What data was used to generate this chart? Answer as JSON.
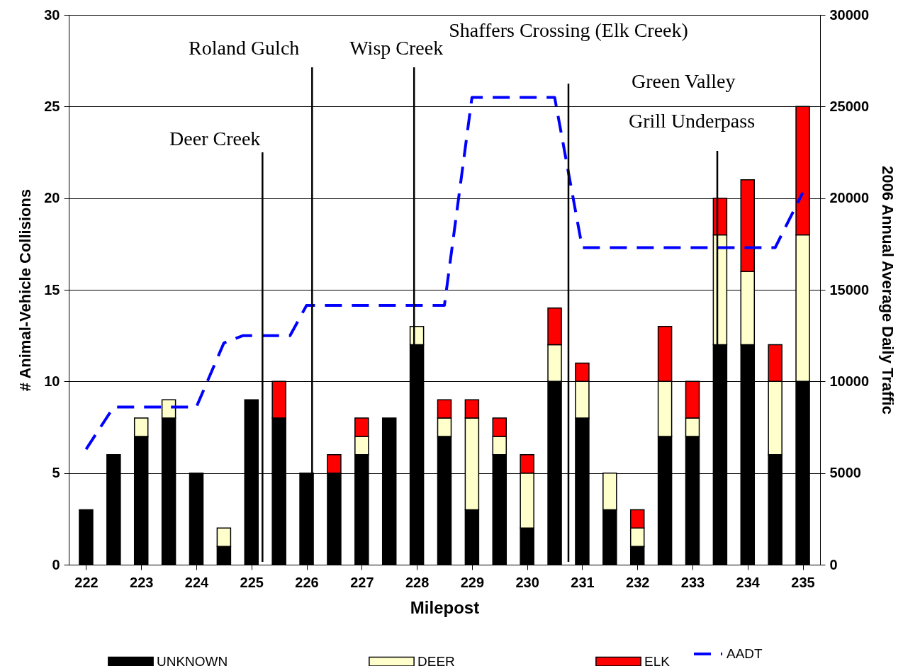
{
  "chart_data": {
    "type": "bar",
    "stacked": true,
    "xlabel": "Milepost",
    "ylabel": "# Animal-Vehicle Collisions",
    "y2label": "2006 Annual Average Daily Traffic",
    "x": [
      222,
      222.5,
      223,
      223.5,
      224,
      224.5,
      225,
      225.5,
      226,
      226.5,
      227,
      227.5,
      228,
      228.5,
      229,
      229.5,
      230,
      230.5,
      231,
      231.5,
      232,
      232.5,
      233,
      233.5,
      234,
      234.5,
      235
    ],
    "series": [
      {
        "name": "UNKNOWN",
        "color": "#000000",
        "values": [
          3,
          6,
          7,
          8,
          5,
          1,
          9,
          8,
          5,
          5,
          6,
          8,
          12,
          7,
          3,
          6,
          2,
          10,
          8,
          3,
          1,
          7,
          7,
          12,
          12,
          6,
          10
        ]
      },
      {
        "name": "DEER",
        "color": "#ffffcc",
        "values": [
          null,
          null,
          1,
          1,
          null,
          1,
          null,
          null,
          null,
          null,
          1,
          null,
          1,
          1,
          5,
          1,
          3,
          2,
          2,
          2,
          1,
          3,
          1,
          6,
          4,
          4,
          8
        ]
      },
      {
        "name": "ELK",
        "color": "#ff0000",
        "values": [
          null,
          null,
          null,
          null,
          null,
          null,
          null,
          2,
          null,
          1,
          1,
          null,
          null,
          1,
          1,
          1,
          1,
          2,
          1,
          null,
          1,
          3,
          2,
          2,
          5,
          2,
          7
        ]
      },
      {
        "name": "AADT",
        "type": "line",
        "axis": "y2",
        "color": "#0000ff",
        "line_style": "dashed",
        "x": [
          222,
          222.5,
          224,
          224.5,
          224.85,
          225.7,
          226,
          228.5,
          229,
          230.5,
          231,
          234.5,
          235
        ],
        "values": [
          6300,
          8600,
          8600,
          12100,
          12500,
          12500,
          14150,
          14150,
          25500,
          25500,
          17300,
          17300,
          20300
        ]
      }
    ],
    "xlim": [
      221.75,
      235.25
    ],
    "xticks": [
      222,
      223,
      224,
      225,
      226,
      227,
      228,
      229,
      230,
      231,
      232,
      233,
      234,
      235
    ],
    "ylim": [
      0,
      30
    ],
    "yticks": [
      0,
      5,
      10,
      15,
      20,
      25,
      30
    ],
    "y2lim": [
      0,
      30000
    ],
    "y2ticks": [
      0,
      5000,
      10000,
      15000,
      20000,
      25000,
      30000
    ],
    "ref_lines": [
      {
        "axis": "x",
        "value": 225.2,
        "label": "Deer Creek"
      },
      {
        "axis": "x",
        "value": 226.1,
        "label": "Roland Gulch"
      },
      {
        "axis": "x",
        "value": 227.95,
        "label": "Wisp Creek"
      },
      {
        "axis": "x",
        "value": 230.75,
        "label": "Shaffers Crossing (Elk Creek)"
      },
      {
        "axis": "x",
        "value": 233.45,
        "label": "Grill Underpass"
      }
    ],
    "annotations": [
      "Green Valley"
    ],
    "grid": "y",
    "legend": "bottom"
  }
}
